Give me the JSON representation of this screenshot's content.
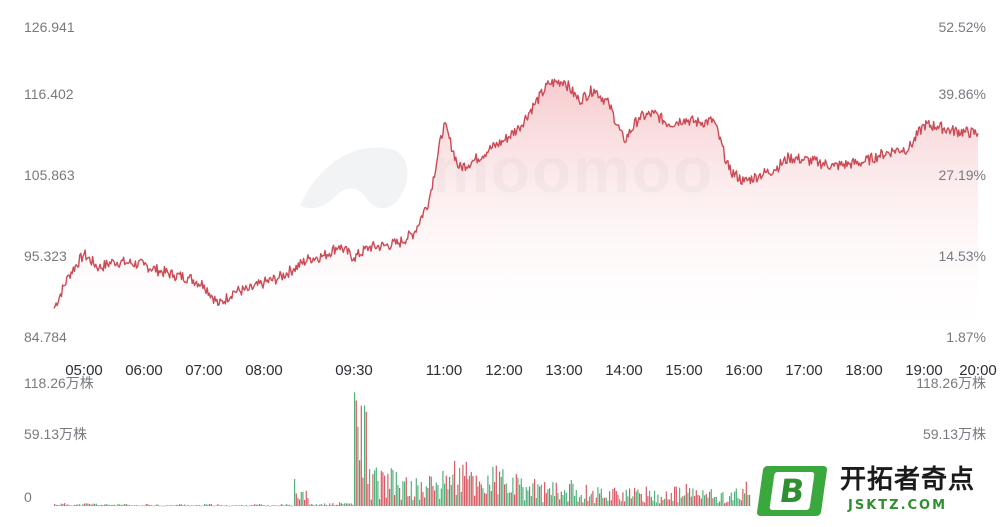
{
  "chart_data": [
    {
      "type": "line",
      "subtype": "area",
      "name": "price-chart",
      "grid": false,
      "y_left_ticks": [
        "126.941",
        "116.402",
        "105.863",
        "95.323",
        "84.784"
      ],
      "y_left_range": [
        84.784,
        126.941
      ],
      "y_right_ticks": [
        "52.52%",
        "39.86%",
        "27.19%",
        "14.53%",
        "1.87%"
      ],
      "x_ticks": [
        "05:00",
        "06:00",
        "07:00",
        "08:00",
        "09:30",
        "11:00",
        "12:00",
        "13:00",
        "14:00",
        "15:00",
        "16:00",
        "17:00",
        "18:00",
        "19:00",
        "20:00"
      ],
      "line_color": "#cc4a55",
      "fill_top_color": "#f5c4c6",
      "series": [
        {
          "x": [
            "04:30",
            "04:45",
            "05:00",
            "05:15",
            "05:30",
            "05:45",
            "06:00",
            "06:15",
            "06:30",
            "06:45",
            "07:00",
            "07:15",
            "07:30",
            "07:45",
            "08:00",
            "08:15",
            "08:30",
            "08:45",
            "09:00",
            "09:15",
            "09:30",
            "09:45",
            "10:00",
            "10:15",
            "10:30",
            "10:45",
            "11:00",
            "11:15",
            "11:30",
            "11:45",
            "12:00",
            "12:15",
            "12:30",
            "12:45",
            "13:00",
            "13:15",
            "13:30",
            "13:45",
            "14:00",
            "14:15",
            "14:30",
            "14:45",
            "15:00",
            "15:15",
            "15:30",
            "15:45",
            "16:00",
            "16:15",
            "16:30",
            "16:45",
            "17:00",
            "17:15",
            "17:30",
            "17:45",
            "18:00",
            "18:15",
            "18:30",
            "18:45",
            "19:00",
            "19:15",
            "19:30",
            "19:45",
            "20:00"
          ],
          "y": [
            88.8,
            93.5,
            96.4,
            94.5,
            95.4,
            95.2,
            94.9,
            94.1,
            93.5,
            93.1,
            92.1,
            89.3,
            91.2,
            91.4,
            92.4,
            93.1,
            94.4,
            95.8,
            96.2,
            97.6,
            95.9,
            97.4,
            97.6,
            98.0,
            99.4,
            104.0,
            114.8,
            108.5,
            109.6,
            111.1,
            112.4,
            114.2,
            117.4,
            120.4,
            120.8,
            118.0,
            119.6,
            117.5,
            112.3,
            115.6,
            116.2,
            114.7,
            115.4,
            114.9,
            115.2,
            108.3,
            106.6,
            107.5,
            108.3,
            110.0,
            109.7,
            109.3,
            108.8,
            109.1,
            109.4,
            110.3,
            111.0,
            111.3,
            114.6,
            114.4,
            113.8,
            113.6,
            113.4
          ]
        }
      ]
    },
    {
      "type": "bar",
      "name": "volume-chart",
      "unit_label": "万株",
      "y_left_ticks": [
        "118.26万株",
        "59.13万株",
        "0"
      ],
      "y_right_ticks": [
        "118.26万株",
        "59.13万株"
      ],
      "ylim": [
        0,
        118.26
      ],
      "up_color": "#d95a64",
      "down_color": "#4fb27a",
      "note": "values in 万株, sampled",
      "series": [
        {
          "x": [
            "04:30",
            "04:45",
            "05:00",
            "05:15",
            "05:30",
            "05:45",
            "06:00",
            "06:15",
            "06:30",
            "06:45",
            "07:00",
            "07:15",
            "07:30",
            "07:45",
            "08:00",
            "08:15",
            "08:30",
            "08:45",
            "09:00",
            "09:15",
            "09:30",
            "09:45",
            "10:00",
            "10:15",
            "10:30",
            "10:45",
            "11:00",
            "11:15",
            "11:30",
            "11:45",
            "12:00",
            "12:15",
            "12:30",
            "12:45",
            "13:00",
            "13:15",
            "13:30",
            "13:45",
            "14:00",
            "14:15",
            "14:30",
            "14:45",
            "15:00",
            "15:15",
            "15:30",
            "15:45",
            "16:00",
            "16:15",
            "16:30",
            "16:45",
            "17:00",
            "17:15",
            "17:30",
            "17:45",
            "18:00",
            "18:15",
            "18:30",
            "18:45",
            "19:00",
            "19:15",
            "19:30",
            "19:45",
            "20:00"
          ],
          "y": [
            3,
            2,
            3,
            2,
            2,
            1,
            2,
            1,
            2,
            1,
            2,
            1,
            1,
            2,
            1,
            2,
            25,
            2,
            3,
            4,
            118,
            40,
            38,
            30,
            28,
            35,
            50,
            46,
            38,
            42,
            32,
            28,
            25,
            24,
            26,
            22,
            20,
            22,
            18,
            20,
            16,
            20,
            22,
            18,
            15,
            18,
            30,
            0,
            0,
            0,
            0,
            0,
            0,
            0,
            0,
            0,
            0,
            0,
            0,
            0,
            0,
            0,
            0
          ]
        }
      ]
    }
  ],
  "watermark": "moomoo",
  "logo": {
    "badge_letter": "B",
    "name_cn": "开拓者奇点",
    "url": "JSKTZ.COM",
    "colors": {
      "green": "#3aa83d",
      "dark_green": "#2f8f31"
    }
  }
}
